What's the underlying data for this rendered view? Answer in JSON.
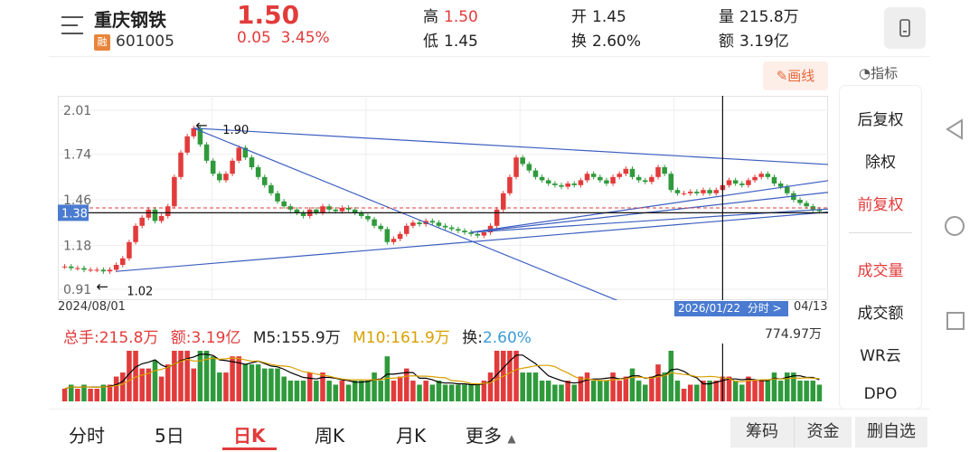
{
  "header": {
    "stock_name": "重庆钢铁",
    "badge": "融",
    "code": "601005",
    "price": "1.50",
    "change": "0.05",
    "change_pct": "3.45%",
    "high_label": "高",
    "high_value": "1.50",
    "low_label": "低",
    "low_value": "1.45",
    "open_label": "开",
    "open_value": "1.45",
    "turnover_label": "换",
    "turnover_value": "2.60%",
    "volume_label": "量",
    "volume_value": "215.8万",
    "amount_label": "额",
    "amount_value": "3.19亿"
  },
  "toolbar": {
    "draw_label": "画线",
    "indicator_label": "指标"
  },
  "side_menu": {
    "items": [
      {
        "label": "后复权",
        "active": false
      },
      {
        "label": "除权",
        "active": false
      },
      {
        "label": "前复权",
        "active": true
      },
      {
        "label": "成交量",
        "active": true
      },
      {
        "label": "成交额",
        "active": false
      },
      {
        "label": "WR云",
        "active": false
      },
      {
        "label": "DPO",
        "active": false
      }
    ]
  },
  "chart_data": {
    "type": "candlestick",
    "y_ticks": [
      "2.01",
      "1.74",
      "1.46",
      "1.18",
      "0.91"
    ],
    "ylim": [
      0.91,
      2.01
    ],
    "start_date": "2024/08/01",
    "crosshair_date": "2026/01/22",
    "crosshair_suffix": "分时 >",
    "end_date": "04/13",
    "current_price_label": "1.38",
    "high_marker": "1.90",
    "low_marker": "1.02",
    "close_series": [
      1.05,
      1.04,
      1.04,
      1.03,
      1.03,
      1.03,
      1.02,
      1.03,
      1.06,
      1.1,
      1.2,
      1.3,
      1.35,
      1.4,
      1.33,
      1.36,
      1.42,
      1.6,
      1.75,
      1.85,
      1.9,
      1.8,
      1.7,
      1.62,
      1.58,
      1.62,
      1.7,
      1.78,
      1.72,
      1.66,
      1.6,
      1.55,
      1.5,
      1.45,
      1.42,
      1.4,
      1.38,
      1.36,
      1.4,
      1.38,
      1.42,
      1.4,
      1.39,
      1.41,
      1.4,
      1.38,
      1.36,
      1.34,
      1.3,
      1.28,
      1.2,
      1.22,
      1.25,
      1.3,
      1.32,
      1.31,
      1.33,
      1.32,
      1.3,
      1.29,
      1.28,
      1.27,
      1.26,
      1.25,
      1.24,
      1.26,
      1.3,
      1.4,
      1.5,
      1.6,
      1.72,
      1.68,
      1.64,
      1.6,
      1.58,
      1.56,
      1.55,
      1.54,
      1.56,
      1.55,
      1.58,
      1.62,
      1.6,
      1.58,
      1.56,
      1.6,
      1.62,
      1.65,
      1.6,
      1.58,
      1.57,
      1.6,
      1.66,
      1.62,
      1.52,
      1.5,
      1.5,
      1.51,
      1.5,
      1.52,
      1.5,
      1.52,
      1.55,
      1.58,
      1.56,
      1.55,
      1.58,
      1.6,
      1.62,
      1.6,
      1.56,
      1.54,
      1.5,
      1.46,
      1.44,
      1.42,
      1.4,
      1.39
    ],
    "volume_max_label": "774.97万"
  },
  "info_bar": {
    "total_hands": "总手:215.8万",
    "amount": "额:3.19亿",
    "m5": "M5:155.9万",
    "m10": "M10:161.9万",
    "turnover_label": "换:",
    "turnover_value": "2.60%"
  },
  "tabs": [
    {
      "label": "分时",
      "active": false
    },
    {
      "label": "5日",
      "active": false
    },
    {
      "label": "日K",
      "active": true
    },
    {
      "label": "周K",
      "active": false
    },
    {
      "label": "月K",
      "active": false
    },
    {
      "label": "更多",
      "active": false
    }
  ],
  "bottom_buttons": {
    "chip": "筹码",
    "fund": "资金",
    "remove": "删自选"
  },
  "colors": {
    "up": "#e23b3b",
    "down": "#2f9a3b",
    "trend": "#3d5fc0",
    "accent": "#e23b3b",
    "ma5": "#000000",
    "ma10": "#d9a000"
  }
}
